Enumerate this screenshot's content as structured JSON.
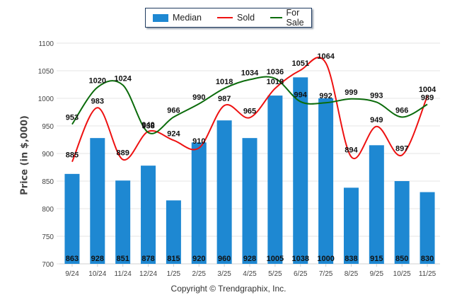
{
  "chart_data": {
    "type": "bar",
    "title": "",
    "xlabel": "",
    "ylabel": "Price (in $,000)",
    "ylim": [
      700,
      1100
    ],
    "yticks": [
      700,
      750,
      800,
      850,
      900,
      950,
      1000,
      1050,
      1100
    ],
    "grid": true,
    "legend_position": "top-center",
    "categories": [
      "9/24",
      "10/24",
      "11/24",
      "12/24",
      "1/25",
      "2/25",
      "3/25",
      "4/25",
      "5/25",
      "6/25",
      "7/25",
      "8/25",
      "9/25",
      "10/25",
      "11/25"
    ],
    "series": [
      {
        "name": "Median",
        "type": "bar",
        "color": "#1e88d2",
        "values": [
          863,
          928,
          851,
          878,
          815,
          920,
          960,
          928,
          1005,
          1038,
          1000,
          838,
          915,
          850,
          830
        ]
      },
      {
        "name": "Sold",
        "type": "line",
        "color": "#ee1111",
        "values": [
          885,
          983,
          889,
          940,
          924,
          910,
          987,
          965,
          1018,
          1051,
          1064,
          894,
          949,
          897,
          1004
        ]
      },
      {
        "name": "For Sale",
        "type": "line",
        "color": "#0b6b0b",
        "values": [
          953,
          1020,
          1024,
          938,
          966,
          990,
          1018,
          1034,
          1036,
          994,
          992,
          999,
          993,
          966,
          989
        ]
      }
    ]
  },
  "legend": {
    "items": [
      {
        "label": "Median",
        "color": "#1e88d2"
      },
      {
        "label": "Sold",
        "color": "#ee1111"
      },
      {
        "label": "For Sale",
        "color": "#0b6b0b"
      }
    ]
  },
  "footer": {
    "copyright": "Copyright © Trendgraphix, Inc."
  }
}
